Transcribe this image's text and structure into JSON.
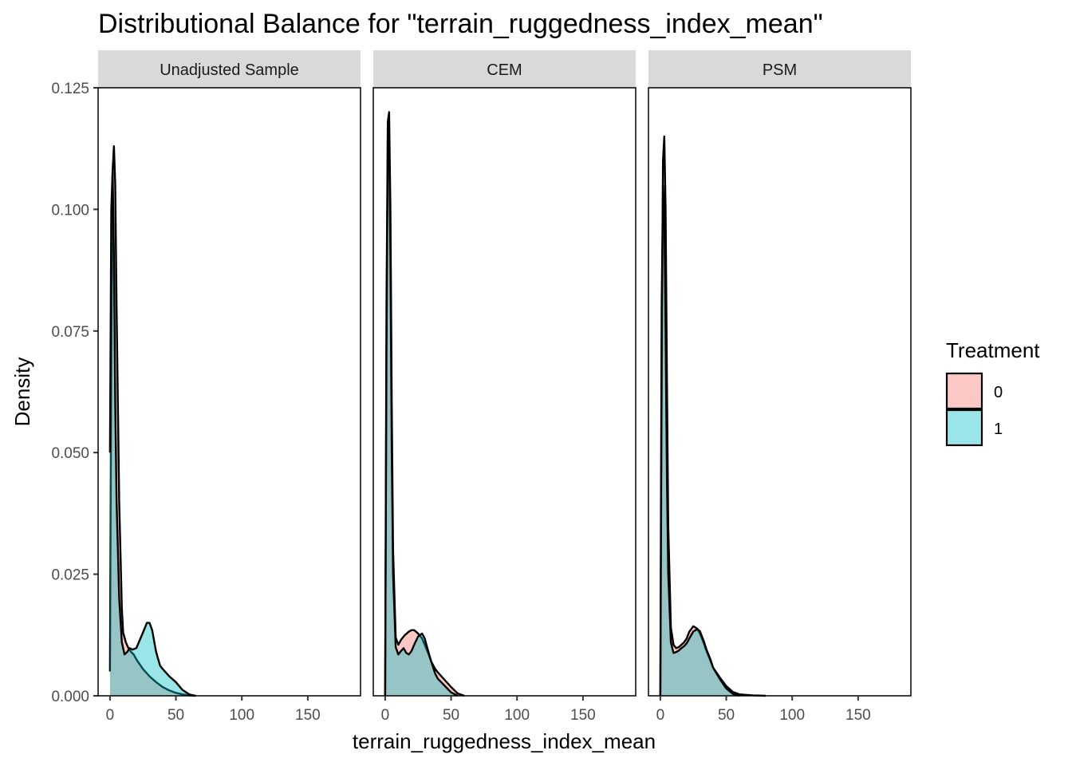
{
  "chart_data": {
    "type": "area",
    "title": "Distributional Balance for \"terrain_ruggedness_index_mean\"",
    "xlabel": "terrain_ruggedness_index_mean",
    "ylabel": "Density",
    "xlim": [
      -9,
      190
    ],
    "ylim": [
      0,
      0.125
    ],
    "x_ticks": [
      0,
      50,
      100,
      150
    ],
    "x_tick_labels": [
      "0",
      "50",
      "100",
      "150"
    ],
    "y_ticks": [
      0,
      0.025,
      0.05,
      0.075,
      0.1,
      0.125
    ],
    "y_tick_labels": [
      "0.000",
      "0.025",
      "0.050",
      "0.075",
      "0.100",
      "0.125"
    ],
    "grid": false,
    "legend": {
      "title": "Treatment",
      "position": "right",
      "entries": [
        {
          "label": "0",
          "color": "#F8766D"
        },
        {
          "label": "1",
          "color": "#00BFC4"
        }
      ]
    },
    "fill_alpha": 0.4,
    "panels": [
      {
        "label": "Unadjusted Sample",
        "series": [
          {
            "name": "0",
            "color": "#F8766D",
            "x": [
              0,
              1,
              2,
              3,
              4,
              5,
              7,
              9,
              10,
              12,
              14,
              16,
              18,
              20,
              25,
              30,
              35,
              40,
              45,
              50,
              55,
              60,
              65
            ],
            "y": [
              0.005,
              0.07,
              0.108,
              0.113,
              0.105,
              0.08,
              0.04,
              0.018,
              0.013,
              0.011,
              0.0098,
              0.009,
              0.0085,
              0.0075,
              0.0055,
              0.004,
              0.0028,
              0.0018,
              0.0011,
              0.0006,
              0.0003,
              0.0001,
              0
            ]
          },
          {
            "name": "1",
            "color": "#00BFC4",
            "x": [
              0,
              1,
              2,
              3,
              4,
              5,
              7,
              9,
              11,
              13,
              15,
              17,
              20,
              25,
              28,
              30,
              32,
              35,
              38,
              40,
              45,
              50,
              55,
              60,
              65
            ],
            "y": [
              0.05,
              0.1,
              0.108,
              0.09,
              0.06,
              0.04,
              0.02,
              0.011,
              0.0085,
              0.009,
              0.0098,
              0.0095,
              0.0098,
              0.013,
              0.015,
              0.015,
              0.0135,
              0.009,
              0.0062,
              0.0055,
              0.004,
              0.0028,
              0.0012,
              0.0003,
              0
            ]
          }
        ]
      },
      {
        "label": "CEM",
        "series": [
          {
            "name": "0",
            "color": "#F8766D",
            "x": [
              0,
              1,
              2,
              3,
              4,
              5,
              6,
              8,
              10,
              12,
              15,
              18,
              20,
              22,
              25,
              28,
              30,
              33,
              35,
              38,
              40,
              45,
              50,
              55,
              60
            ],
            "y": [
              0,
              0.08,
              0.118,
              0.12,
              0.1,
              0.06,
              0.03,
              0.012,
              0.0105,
              0.0115,
              0.0125,
              0.0132,
              0.0135,
              0.0135,
              0.0128,
              0.0118,
              0.0105,
              0.0085,
              0.007,
              0.0055,
              0.0048,
              0.0033,
              0.0018,
              0.0005,
              0
            ]
          },
          {
            "name": "1",
            "color": "#00BFC4",
            "x": [
              0,
              1,
              2,
              3,
              4,
              5,
              6,
              8,
              10,
              12,
              14,
              16,
              18,
              20,
              22,
              25,
              28,
              30,
              32,
              35,
              38,
              40,
              45,
              50,
              55
            ],
            "y": [
              0,
              0.07,
              0.115,
              0.117,
              0.09,
              0.05,
              0.025,
              0.01,
              0.0085,
              0.0092,
              0.0098,
              0.0088,
              0.0085,
              0.0092,
              0.0105,
              0.0122,
              0.0128,
              0.0118,
              0.0098,
              0.007,
              0.0045,
              0.0035,
              0.0021,
              0.0007,
              0
            ]
          }
        ]
      },
      {
        "label": "PSM",
        "series": [
          {
            "name": "0",
            "color": "#F8766D",
            "x": [
              0,
              1,
              2,
              3,
              4,
              5,
              6,
              8,
              10,
              12,
              14,
              16,
              18,
              20,
              22,
              25,
              28,
              30,
              33,
              35,
              38,
              40,
              45,
              50,
              55,
              60,
              70,
              80
            ],
            "y": [
              0,
              0.06,
              0.11,
              0.115,
              0.1,
              0.065,
              0.035,
              0.014,
              0.0105,
              0.0098,
              0.01,
              0.0105,
              0.011,
              0.0118,
              0.0132,
              0.0143,
              0.0138,
              0.0128,
              0.0108,
              0.0092,
              0.0072,
              0.0058,
              0.0038,
              0.002,
              0.0008,
              0.0003,
              0.0001,
              0
            ]
          },
          {
            "name": "1",
            "color": "#00BFC4",
            "x": [
              0,
              1,
              2,
              3,
              4,
              5,
              6,
              8,
              10,
              12,
              14,
              16,
              18,
              20,
              22,
              25,
              28,
              30,
              33,
              35,
              38,
              40,
              45,
              50,
              55,
              60
            ],
            "y": [
              0,
              0.08,
              0.105,
              0.1,
              0.075,
              0.045,
              0.025,
              0.011,
              0.0088,
              0.009,
              0.0093,
              0.0098,
              0.0102,
              0.0108,
              0.0118,
              0.0132,
              0.0137,
              0.0133,
              0.0112,
              0.0095,
              0.0075,
              0.0058,
              0.0035,
              0.0015,
              0.0004,
              0
            ]
          }
        ]
      }
    ]
  }
}
